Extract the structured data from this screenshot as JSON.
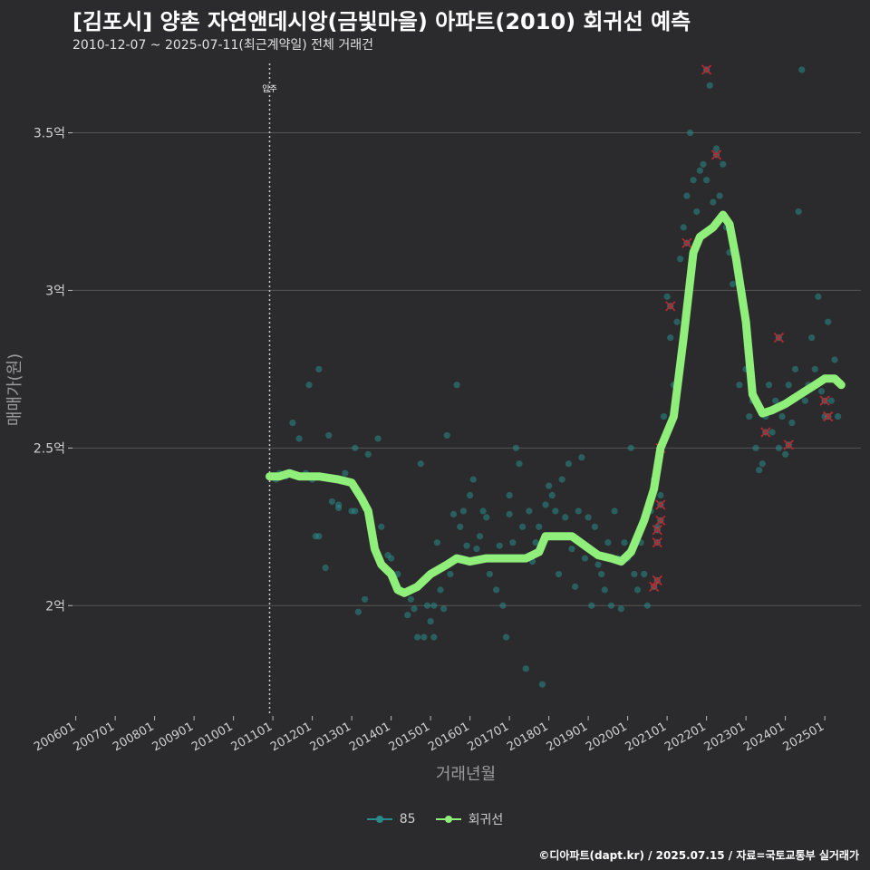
{
  "header": {
    "title": "[김포시] 양촌 자연앤데시앙(금빛마을) 아파트(2010) 회귀선 예측",
    "subtitle": "2010-12-07 ~ 2025-07-11(최근계약일) 전체 거래건"
  },
  "footer": {
    "credit": "©디아파트(dapt.kr) / 2025.07.15 / 자료=국토교통부 실거래가"
  },
  "colors": {
    "background": "#2b2b2d",
    "grid": "#555555",
    "scatter": "#2a8a8a",
    "regression": "#90ee7a",
    "cancelled": "#c0242c"
  },
  "legend": [
    {
      "label": "85",
      "color": "#2a8a8a"
    },
    {
      "label": "회귀선",
      "color": "#90ee7a"
    }
  ],
  "chart_data": {
    "type": "scatter",
    "xlabel": "거래년월",
    "ylabel": "매매가(원)",
    "xlim": [
      "2005-12",
      "2025-12"
    ],
    "ylim": [
      1.65,
      3.72
    ],
    "x_ticks": [
      "200601",
      "200701",
      "200801",
      "200901",
      "201001",
      "201101",
      "201201",
      "201301",
      "201401",
      "201501",
      "201601",
      "201701",
      "201801",
      "201901",
      "202001",
      "202101",
      "202201",
      "202301",
      "202401",
      "202501"
    ],
    "y_ticks": [
      {
        "value": 2,
        "label": "2억"
      },
      {
        "value": 2.5,
        "label": "2.5억"
      },
      {
        "value": 3,
        "label": "3억"
      },
      {
        "value": 3.5,
        "label": "3.5억"
      }
    ],
    "vline": {
      "x": "2010-12",
      "label": "입주"
    },
    "grid": "horizontal",
    "legend_position": "bottom",
    "regression": [
      [
        "2010-12",
        2.41
      ],
      [
        "2011-03",
        2.41
      ],
      [
        "2011-06",
        2.42
      ],
      [
        "2011-09",
        2.41
      ],
      [
        "2012-03",
        2.41
      ],
      [
        "2012-09",
        2.4
      ],
      [
        "2013-01",
        2.39
      ],
      [
        "2013-04",
        2.34
      ],
      [
        "2013-06",
        2.3
      ],
      [
        "2013-08",
        2.18
      ],
      [
        "2013-10",
        2.13
      ],
      [
        "2014-01",
        2.1
      ],
      [
        "2014-03",
        2.05
      ],
      [
        "2014-05",
        2.04
      ],
      [
        "2014-09",
        2.06
      ],
      [
        "2015-01",
        2.1
      ],
      [
        "2015-06",
        2.13
      ],
      [
        "2015-09",
        2.15
      ],
      [
        "2016-01",
        2.14
      ],
      [
        "2016-06",
        2.15
      ],
      [
        "2016-12",
        2.15
      ],
      [
        "2017-03",
        2.15
      ],
      [
        "2017-06",
        2.15
      ],
      [
        "2017-10",
        2.17
      ],
      [
        "2017-12",
        2.22
      ],
      [
        "2018-04",
        2.22
      ],
      [
        "2018-08",
        2.22
      ],
      [
        "2018-12",
        2.19
      ],
      [
        "2019-04",
        2.16
      ],
      [
        "2019-08",
        2.15
      ],
      [
        "2019-11",
        2.14
      ],
      [
        "2020-02",
        2.17
      ],
      [
        "2020-06",
        2.27
      ],
      [
        "2020-09",
        2.37
      ],
      [
        "2020-11",
        2.5
      ],
      [
        "2021-03",
        2.6
      ],
      [
        "2021-06",
        2.85
      ],
      [
        "2021-09",
        3.12
      ],
      [
        "2021-11",
        3.17
      ],
      [
        "2022-03",
        3.2
      ],
      [
        "2022-06",
        3.24
      ],
      [
        "2022-08",
        3.21
      ],
      [
        "2022-10",
        3.1
      ],
      [
        "2023-01",
        2.9
      ],
      [
        "2023-03",
        2.67
      ],
      [
        "2023-06",
        2.61
      ],
      [
        "2023-09",
        2.62
      ],
      [
        "2024-01",
        2.64
      ],
      [
        "2024-04",
        2.66
      ],
      [
        "2024-07",
        2.68
      ],
      [
        "2024-10",
        2.7
      ],
      [
        "2025-01",
        2.72
      ],
      [
        "2025-04",
        2.72
      ],
      [
        "2025-06",
        2.7
      ]
    ],
    "scatter": [
      [
        "2011-01",
        2.41
      ],
      [
        "2011-02",
        2.4
      ],
      [
        "2011-03",
        2.42
      ],
      [
        "2011-05",
        2.41
      ],
      [
        "2011-07",
        2.58
      ],
      [
        "2011-09",
        2.53
      ],
      [
        "2011-11",
        2.42
      ],
      [
        "2011-12",
        2.7
      ],
      [
        "2012-01",
        2.4
      ],
      [
        "2012-02",
        2.22
      ],
      [
        "2012-03",
        2.22
      ],
      [
        "2012-03",
        2.75
      ],
      [
        "2012-05",
        2.12
      ],
      [
        "2012-06",
        2.54
      ],
      [
        "2012-07",
        2.33
      ],
      [
        "2012-09",
        2.32
      ],
      [
        "2012-09",
        2.31
      ],
      [
        "2012-11",
        2.42
      ],
      [
        "2013-01",
        2.3
      ],
      [
        "2013-02",
        2.3
      ],
      [
        "2013-02",
        2.5
      ],
      [
        "2013-03",
        1.98
      ],
      [
        "2013-05",
        2.02
      ],
      [
        "2013-06",
        2.48
      ],
      [
        "2013-09",
        2.53
      ],
      [
        "2013-10",
        2.25
      ],
      [
        "2013-12",
        2.16
      ],
      [
        "2014-01",
        2.15
      ],
      [
        "2014-02",
        2.09
      ],
      [
        "2014-03",
        2.1
      ],
      [
        "2014-04",
        2.05
      ],
      [
        "2014-05",
        2.04
      ],
      [
        "2014-06",
        1.97
      ],
      [
        "2014-07",
        2.02
      ],
      [
        "2014-08",
        1.99
      ],
      [
        "2014-09",
        1.9
      ],
      [
        "2014-10",
        2.45
      ],
      [
        "2014-11",
        1.9
      ],
      [
        "2014-12",
        2.0
      ],
      [
        "2015-01",
        1.95
      ],
      [
        "2015-02",
        1.9
      ],
      [
        "2015-02",
        2.0
      ],
      [
        "2015-03",
        2.2
      ],
      [
        "2015-04",
        2.05
      ],
      [
        "2015-05",
        1.99
      ],
      [
        "2015-06",
        2.54
      ],
      [
        "2015-07",
        2.1
      ],
      [
        "2015-08",
        2.29
      ],
      [
        "2015-09",
        2.7
      ],
      [
        "2015-10",
        2.25
      ],
      [
        "2015-11",
        2.3
      ],
      [
        "2015-12",
        2.19
      ],
      [
        "2016-01",
        2.35
      ],
      [
        "2016-02",
        2.4
      ],
      [
        "2016-03",
        2.18
      ],
      [
        "2016-04",
        2.22
      ],
      [
        "2016-05",
        2.3
      ],
      [
        "2016-06",
        2.28
      ],
      [
        "2016-07",
        2.1
      ],
      [
        "2016-08",
        2.15
      ],
      [
        "2016-09",
        2.05
      ],
      [
        "2016-10",
        2.19
      ],
      [
        "2016-11",
        2.0
      ],
      [
        "2016-12",
        1.9
      ],
      [
        "2017-01",
        2.29
      ],
      [
        "2017-01",
        2.35
      ],
      [
        "2017-02",
        2.2
      ],
      [
        "2017-03",
        2.5
      ],
      [
        "2017-04",
        2.45
      ],
      [
        "2017-05",
        2.25
      ],
      [
        "2017-06",
        1.8
      ],
      [
        "2017-07",
        2.3
      ],
      [
        "2017-08",
        2.14
      ],
      [
        "2017-09",
        2.2
      ],
      [
        "2017-10",
        2.25
      ],
      [
        "2017-11",
        1.75
      ],
      [
        "2017-12",
        2.32
      ],
      [
        "2018-01",
        2.38
      ],
      [
        "2018-02",
        2.35
      ],
      [
        "2018-03",
        2.3
      ],
      [
        "2018-04",
        2.1
      ],
      [
        "2018-05",
        2.4
      ],
      [
        "2018-06",
        2.28
      ],
      [
        "2018-07",
        2.45
      ],
      [
        "2018-08",
        2.18
      ],
      [
        "2018-09",
        2.06
      ],
      [
        "2018-10",
        2.3
      ],
      [
        "2018-11",
        2.47
      ],
      [
        "2018-12",
        2.15
      ],
      [
        "2019-01",
        2.28
      ],
      [
        "2019-02",
        2.0
      ],
      [
        "2019-03",
        2.25
      ],
      [
        "2019-04",
        2.13
      ],
      [
        "2019-05",
        2.1
      ],
      [
        "2019-06",
        2.05
      ],
      [
        "2019-07",
        2.2
      ],
      [
        "2019-08",
        2.0
      ],
      [
        "2019-09",
        2.3
      ],
      [
        "2019-10",
        2.15
      ],
      [
        "2019-11",
        1.99
      ],
      [
        "2019-12",
        2.2
      ],
      [
        "2020-01",
        2.15
      ],
      [
        "2020-02",
        2.5
      ],
      [
        "2020-03",
        2.1
      ],
      [
        "2020-04",
        2.05
      ],
      [
        "2020-05",
        2.2
      ],
      [
        "2020-06",
        2.1
      ],
      [
        "2020-07",
        2.0
      ],
      [
        "2020-08",
        2.3
      ],
      [
        "2020-09",
        2.4
      ],
      [
        "2020-10",
        2.25
      ],
      [
        "2020-11",
        2.35
      ],
      [
        "2020-12",
        2.6
      ],
      [
        "2021-01",
        2.98
      ],
      [
        "2021-02",
        2.85
      ],
      [
        "2021-03",
        2.7
      ],
      [
        "2021-04",
        2.9
      ],
      [
        "2021-05",
        3.1
      ],
      [
        "2021-06",
        3.2
      ],
      [
        "2021-07",
        3.3
      ],
      [
        "2021-08",
        3.5
      ],
      [
        "2021-09",
        3.35
      ],
      [
        "2021-10",
        3.25
      ],
      [
        "2021-11",
        3.38
      ],
      [
        "2021-12",
        3.4
      ],
      [
        "2022-01",
        3.35
      ],
      [
        "2022-02",
        3.65
      ],
      [
        "2022-03",
        3.28
      ],
      [
        "2022-04",
        3.45
      ],
      [
        "2022-05",
        3.3
      ],
      [
        "2022-06",
        3.4
      ],
      [
        "2022-07",
        3.2
      ],
      [
        "2022-08",
        3.12
      ],
      [
        "2022-09",
        3.02
      ],
      [
        "2022-11",
        2.7
      ],
      [
        "2023-01",
        2.75
      ],
      [
        "2023-02",
        2.6
      ],
      [
        "2023-03",
        2.65
      ],
      [
        "2023-04",
        2.5
      ],
      [
        "2023-05",
        2.43
      ],
      [
        "2023-06",
        2.45
      ],
      [
        "2023-07",
        2.6
      ],
      [
        "2023-08",
        2.7
      ],
      [
        "2023-09",
        2.55
      ],
      [
        "2023-10",
        2.65
      ],
      [
        "2023-11",
        2.5
      ],
      [
        "2023-12",
        2.6
      ],
      [
        "2024-01",
        2.48
      ],
      [
        "2024-02",
        2.7
      ],
      [
        "2024-03",
        2.58
      ],
      [
        "2024-04",
        2.75
      ],
      [
        "2024-05",
        3.25
      ],
      [
        "2024-06",
        3.7
      ],
      [
        "2024-07",
        2.65
      ],
      [
        "2024-08",
        2.7
      ],
      [
        "2024-09",
        2.85
      ],
      [
        "2024-10",
        2.75
      ],
      [
        "2024-11",
        2.98
      ],
      [
        "2024-12",
        2.68
      ],
      [
        "2025-01",
        2.6
      ],
      [
        "2025-02",
        2.9
      ],
      [
        "2025-03",
        2.65
      ],
      [
        "2025-04",
        2.78
      ],
      [
        "2025-05",
        2.6
      ],
      [
        "2025-06",
        2.7
      ]
    ],
    "cancelled": [
      [
        "2020-09",
        2.06
      ],
      [
        "2020-10",
        2.08
      ],
      [
        "2020-10",
        2.2
      ],
      [
        "2020-10",
        2.24
      ],
      [
        "2020-11",
        2.27
      ],
      [
        "2020-11",
        2.32
      ],
      [
        "2020-11",
        2.5
      ],
      [
        "2021-02",
        2.95
      ],
      [
        "2021-07",
        3.15
      ],
      [
        "2022-01",
        3.7
      ],
      [
        "2022-04",
        3.43
      ],
      [
        "2023-07",
        2.55
      ],
      [
        "2023-11",
        2.85
      ],
      [
        "2024-02",
        2.51
      ],
      [
        "2025-01",
        2.65
      ],
      [
        "2025-02",
        2.6
      ]
    ]
  }
}
